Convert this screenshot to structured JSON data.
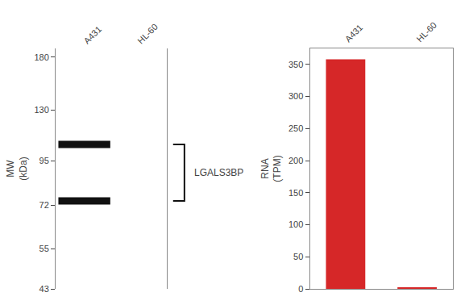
{
  "chart_data": [
    {
      "type": "blot",
      "categories": [
        "A431",
        "HL-60"
      ],
      "series": [
        {
          "values": [
            105,
            null
          ]
        },
        {
          "values": [
            74,
            null
          ]
        }
      ],
      "color": "#111111",
      "marker": "line-ew",
      "log": "y",
      "grid": false,
      "ylabel": "MW\n(kDa)",
      "ylim": [
        43,
        190
      ],
      "yticks": [
        180,
        130,
        95,
        72,
        55,
        43
      ],
      "annotations": [
        {
          "text": "LGALS3BP"
        }
      ]
    },
    {
      "type": "bar",
      "categories": [
        "A431",
        "HL-60"
      ],
      "values": [
        358,
        2
      ],
      "grid": false,
      "ylabel": "RNA\n(TPM)",
      "ylim": [
        0,
        375
      ],
      "yticks": [
        0,
        50,
        100,
        150,
        200,
        250,
        300,
        350
      ]
    }
  ]
}
